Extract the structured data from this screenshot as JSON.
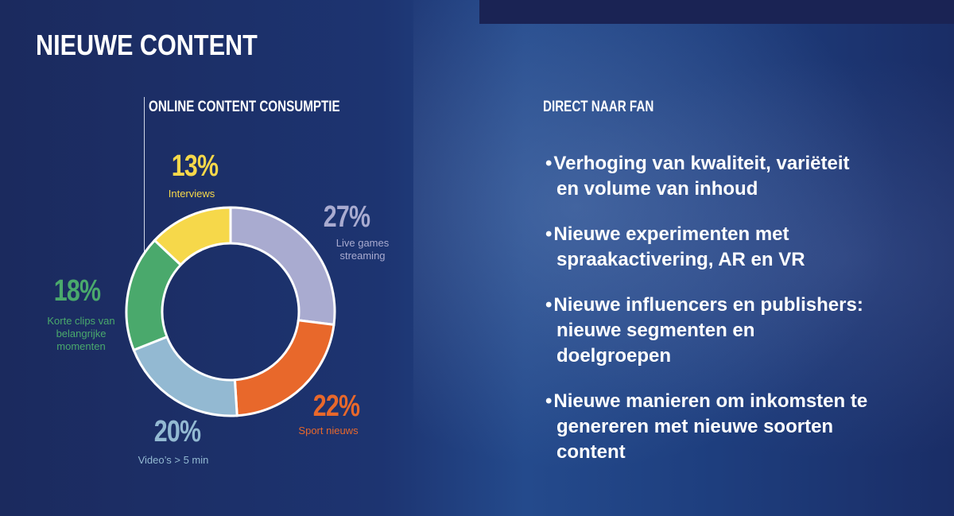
{
  "header": {
    "title": "NIEUWE CONTENT"
  },
  "chart_data": {
    "type": "donut",
    "title": "ONLINE CONTENT CONSUMPTIE",
    "categories": [
      "Live games streaming",
      "Sport nieuws",
      "Video’s > 5 min",
      "Korte clips van belangrijke momenten",
      "Interviews"
    ],
    "values": [
      27,
      22,
      20,
      18,
      13
    ],
    "value_labels": [
      "27%",
      "22%",
      "20%",
      "18%",
      "13%"
    ],
    "colors": [
      "#a9abd0",
      "#e8682b",
      "#93b9d2",
      "#4aa96c",
      "#f6d84a"
    ]
  },
  "panel": {
    "title": "DIRECT NAAR FAN",
    "items": [
      "Verhoging van kwaliteit, variëteit en volume van inhoud",
      "Nieuwe experimenten met spraakactivering, AR en VR",
      "Nieuwe influencers en publishers: nieuwe segmenten en doelgroepen",
      "Nieuwe manieren om inkomsten te genereren met nieuwe soorten content"
    ]
  }
}
